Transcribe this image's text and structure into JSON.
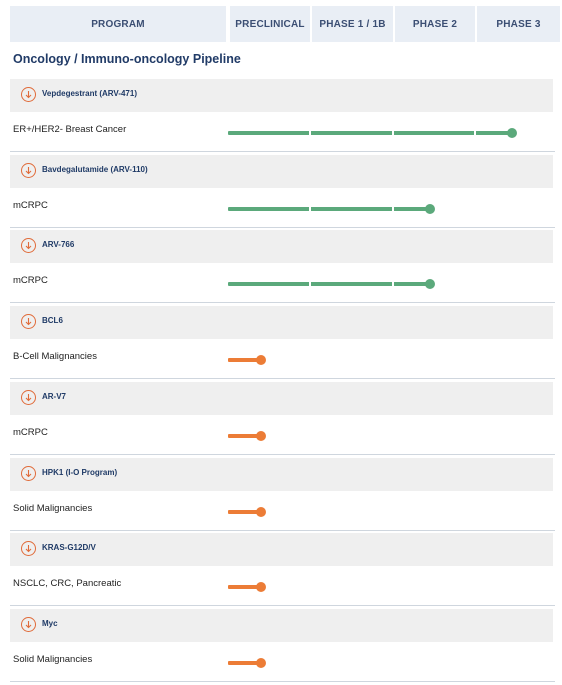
{
  "header": {
    "columns": [
      "PROGRAM",
      "PRECLINICAL",
      "PHASE 1 / 1B",
      "PHASE 2",
      "PHASE 3"
    ]
  },
  "title": "Oncology / Immuno-oncology Pipeline",
  "colors": {
    "green": "#5ba97b",
    "orange": "#ec7c36",
    "icon": "#e06b3a",
    "header_bg": "#e9eef5"
  },
  "chart_data": {
    "type": "bar",
    "title": "Oncology / Immuno-oncology Pipeline",
    "stage_scale": [
      "PRECLINICAL",
      "PHASE 1 / 1B",
      "PHASE 2",
      "PHASE 3"
    ],
    "programs": [
      {
        "name": "Vepdegestrant (ARV-471)",
        "indication": "ER+/HER2- Breast Cancer",
        "progress": 3.45,
        "color": "green"
      },
      {
        "name": "Bavdegalutamide (ARV-110)",
        "indication": "mCRPC",
        "progress": 2.45,
        "color": "green"
      },
      {
        "name": "ARV-766",
        "indication": "mCRPC",
        "progress": 2.45,
        "color": "green"
      },
      {
        "name": "BCL6",
        "indication": "B-Cell Malignancies",
        "progress": 0.4,
        "color": "orange"
      },
      {
        "name": "AR-V7",
        "indication": "mCRPC",
        "progress": 0.4,
        "color": "orange"
      },
      {
        "name": "HPK1 (I-O Program)",
        "indication": "Solid Malignancies",
        "progress": 0.4,
        "color": "orange"
      },
      {
        "name": "KRAS-G12D/V",
        "indication": "NSCLC, CRC, Pancreatic",
        "progress": 0.4,
        "color": "orange"
      },
      {
        "name": "Myc",
        "indication": "Solid Malignancies",
        "progress": 0.4,
        "color": "orange"
      }
    ]
  }
}
